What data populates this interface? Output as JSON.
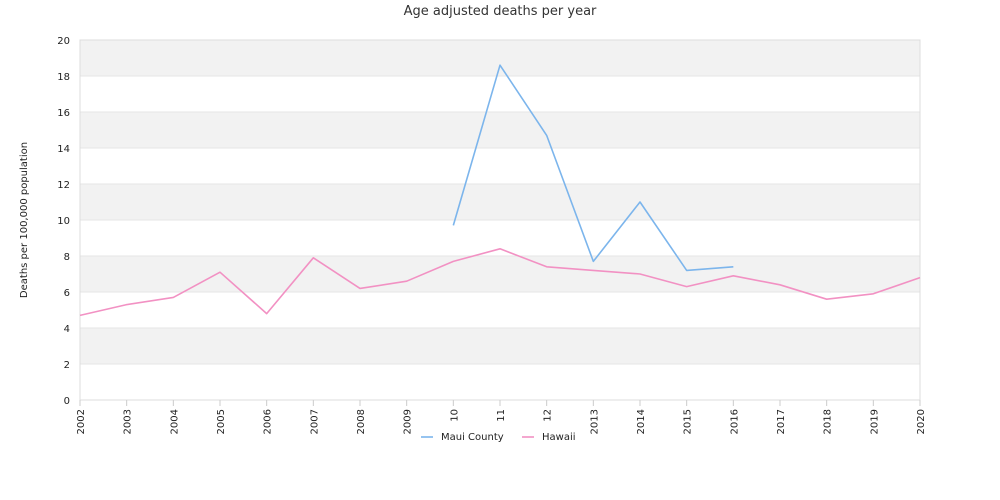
{
  "chart_data": {
    "type": "line",
    "title": "Age adjusted deaths per year",
    "xlabel": "",
    "ylabel": "Deaths per 100,000 population",
    "ylim": [
      0,
      20
    ],
    "yticks": [
      "0",
      "2",
      "4",
      "6",
      "8",
      "10",
      "12",
      "14",
      "16",
      "18",
      "20"
    ],
    "categories": [
      "2002",
      "2003",
      "2004",
      "2005",
      "2006",
      "2007",
      "2008",
      "2009",
      "10",
      "11",
      "12",
      "2013",
      "2014",
      "2015",
      "2016",
      "2017",
      "2018",
      "2019",
      "2020"
    ],
    "series": [
      {
        "name": "Maui County",
        "color": "#7cb5ec",
        "values": [
          null,
          null,
          null,
          null,
          null,
          null,
          null,
          null,
          9.7,
          18.6,
          14.7,
          7.7,
          11.0,
          7.2,
          7.4,
          null,
          null,
          null,
          null
        ]
      },
      {
        "name": "Hawaii",
        "color": "#f291c3",
        "values": [
          4.7,
          5.3,
          5.7,
          7.1,
          4.8,
          7.9,
          6.2,
          6.6,
          7.7,
          8.4,
          7.4,
          7.2,
          7.0,
          6.3,
          6.9,
          6.4,
          5.6,
          5.9,
          6.8
        ]
      }
    ],
    "grid": true,
    "legend_position": "bottom-center"
  }
}
